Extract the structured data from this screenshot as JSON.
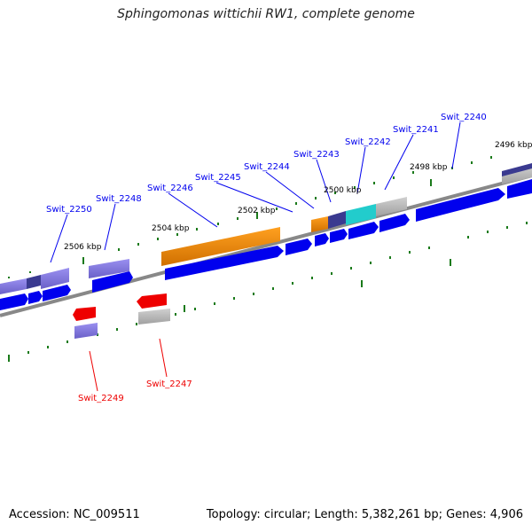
{
  "title": "Sphingomonas wittichii RW1, complete genome",
  "accession": "Accession: NC_009511",
  "summary": "Topology: circular; Length: 5,382,261 bp; Genes: 4,906",
  "colors": {
    "gene_forward": "#0000ee",
    "gene_reverse": "#ee0000",
    "backbone": "#888888",
    "tick": "#1a7a1a",
    "feature_orange": "#f08c00",
    "feature_cyan": "#22cccc",
    "feature_lavender": "#7a6fd8",
    "feature_indigo": "#3a3a90",
    "feature_grey": "#b0b0b0"
  },
  "scale_labels": [
    "2496 kbp",
    "2498 kbp",
    "2500 kbp",
    "2502 kbp",
    "2504 kbp",
    "2506 kbp"
  ],
  "genes": {
    "forward": [
      "Swit_2240",
      "Swit_2241",
      "Swit_2242",
      "Swit_2243",
      "Swit_2244",
      "Swit_2245",
      "Swit_2246",
      "Swit_2248",
      "Swit_2250"
    ],
    "reverse": [
      "Swit_2247",
      "Swit_2249"
    ]
  }
}
